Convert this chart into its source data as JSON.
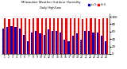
{
  "title": "Milwaukee Weather Outdoor Humidity",
  "subtitle": "Daily High/Low",
  "high_values": [
    95,
    93,
    96,
    97,
    95,
    97,
    94,
    97,
    95,
    95,
    97,
    95,
    97,
    95,
    97,
    95,
    96,
    95,
    97,
    93,
    97,
    95,
    95,
    93,
    97,
    95
  ],
  "low_values": [
    68,
    72,
    75,
    72,
    68,
    50,
    35,
    58,
    62,
    55,
    52,
    65,
    62,
    62,
    58,
    38,
    35,
    48,
    55,
    38,
    62,
    62,
    58,
    58,
    48,
    35
  ],
  "high_color": "#ff0000",
  "low_color": "#0000cc",
  "bg_color": "#ffffff",
  "grid_color": "#cccccc",
  "y_ticks": [
    0,
    20,
    40,
    60,
    80,
    100
  ],
  "ylim": [
    0,
    108
  ],
  "bar_width": 0.42,
  "legend_high": "Hi %",
  "legend_low": "Lo %",
  "dpi": 100,
  "figsize": [
    1.6,
    0.87
  ]
}
